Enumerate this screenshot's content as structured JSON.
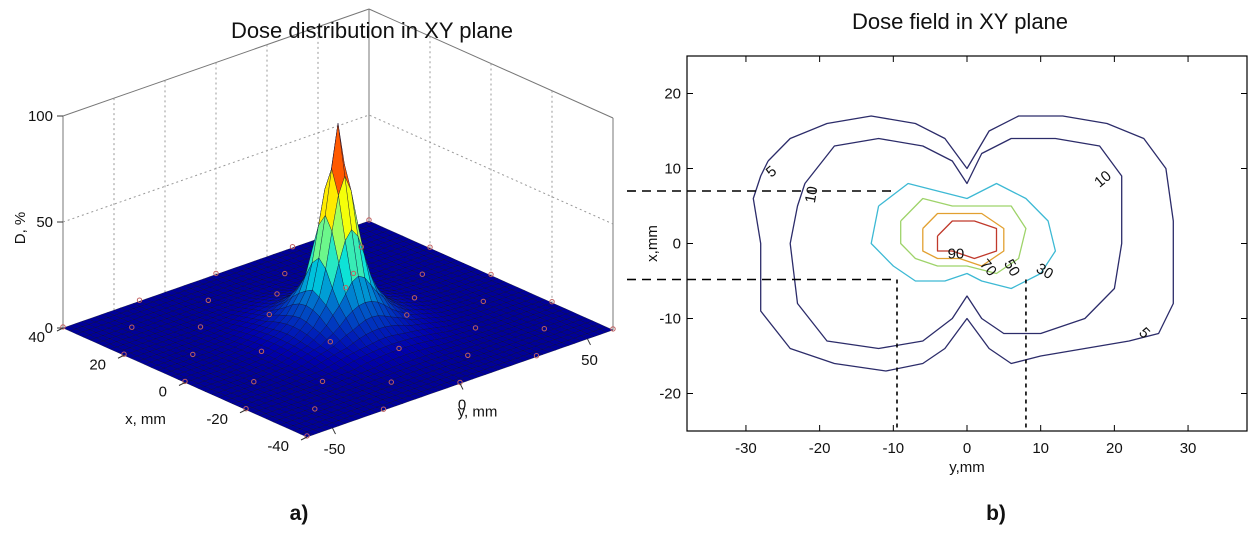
{
  "chart_data": [
    {
      "type": "surface",
      "panel_label": "a)",
      "title": "Dose distribution in XY plane",
      "xlabel": "x, mm",
      "ylabel": "y, mm",
      "zlabel": "D, %",
      "x_ticks": [
        "40",
        "20",
        "0",
        "-20",
        "-40"
      ],
      "y_ticks": [
        "-50",
        "0",
        "50"
      ],
      "z_ticks": [
        "0",
        "50",
        "100"
      ],
      "xlim": [
        -40,
        40
      ],
      "ylim": [
        -60,
        60
      ],
      "zlim": [
        0,
        100
      ],
      "colormap": "jet",
      "peak": {
        "x": 0,
        "y": 0,
        "D": 97
      },
      "profile_D_vs_r_mm": [
        [
          0,
          97
        ],
        [
          2,
          80
        ],
        [
          4,
          62
        ],
        [
          6,
          45
        ],
        [
          8,
          30
        ],
        [
          10,
          20
        ],
        [
          15,
          10
        ],
        [
          20,
          5
        ],
        [
          30,
          1
        ],
        [
          40,
          0
        ]
      ],
      "grid": true,
      "colors": {
        "surface_low": "#0a1f8f",
        "surface_high": "#a00000",
        "markers": "#c06060"
      }
    },
    {
      "type": "contour",
      "panel_label": "b)",
      "title": "Dose field in XY plane",
      "xlabel": "y,mm",
      "ylabel": "x,mm",
      "xlim": [
        -38,
        38
      ],
      "ylim": [
        -25,
        25
      ],
      "x_ticks": [
        "-30",
        "-20",
        "-10",
        "0",
        "10",
        "20",
        "30"
      ],
      "y_ticks": [
        "20",
        "10",
        "0",
        "-10",
        "-20"
      ],
      "levels": [
        {
          "label": "5",
          "color": "#2c2c6a",
          "points": [
            [
              -27,
              11
            ],
            [
              -24,
              14
            ],
            [
              -19,
              16
            ],
            [
              -13,
              17
            ],
            [
              -7,
              16
            ],
            [
              -3,
              14
            ],
            [
              0,
              10
            ],
            [
              3,
              15
            ],
            [
              7,
              17
            ],
            [
              13,
              17
            ],
            [
              19,
              16
            ],
            [
              24,
              14
            ],
            [
              27,
              10
            ],
            [
              28,
              3
            ],
            [
              28,
              -8
            ],
            [
              26,
              -12
            ],
            [
              22,
              -13
            ],
            [
              16,
              -14
            ],
            [
              10,
              -15
            ],
            [
              6,
              -16
            ],
            [
              3,
              -14
            ],
            [
              0,
              -10
            ],
            [
              -3,
              -14
            ],
            [
              -6,
              -16
            ],
            [
              -11,
              -17
            ],
            [
              -18,
              -16
            ],
            [
              -24,
              -14
            ],
            [
              -28,
              -9
            ],
            [
              -28,
              0
            ],
            [
              -29,
              6
            ],
            [
              -28,
              9
            ],
            [
              -27,
              11
            ]
          ]
        },
        {
          "label": "10",
          "color": "#2c2c6a",
          "points": [
            [
              -22,
              8
            ],
            [
              -18,
              13
            ],
            [
              -12,
              14
            ],
            [
              -6,
              13
            ],
            [
              -2,
              11
            ],
            [
              0,
              8
            ],
            [
              2,
              12
            ],
            [
              6,
              14
            ],
            [
              12,
              14
            ],
            [
              18,
              13
            ],
            [
              21,
              9
            ],
            [
              21,
              0
            ],
            [
              20,
              -6
            ],
            [
              16,
              -10
            ],
            [
              10,
              -12
            ],
            [
              5,
              -12
            ],
            [
              2,
              -10
            ],
            [
              0,
              -7
            ],
            [
              -2,
              -10
            ],
            [
              -6,
              -13
            ],
            [
              -12,
              -14
            ],
            [
              -19,
              -13
            ],
            [
              -23,
              -8
            ],
            [
              -24,
              0
            ],
            [
              -23,
              5
            ],
            [
              -22,
              8
            ]
          ]
        },
        {
          "label": "30",
          "color": "#3db9d4",
          "points": [
            [
              -12,
              5
            ],
            [
              -8,
              8
            ],
            [
              -4,
              7
            ],
            [
              0,
              6
            ],
            [
              4,
              8
            ],
            [
              8,
              6
            ],
            [
              11,
              3
            ],
            [
              12,
              -1
            ],
            [
              10,
              -4
            ],
            [
              6,
              -6
            ],
            [
              2,
              -5
            ],
            [
              0,
              -4
            ],
            [
              -3,
              -5
            ],
            [
              -7,
              -5
            ],
            [
              -10,
              -3
            ],
            [
              -13,
              0
            ],
            [
              -12,
              5
            ]
          ]
        },
        {
          "label": "50",
          "color": "#9ed36a",
          "points": [
            [
              -9,
              3
            ],
            [
              -6,
              6
            ],
            [
              -2,
              5
            ],
            [
              2,
              5
            ],
            [
              6,
              5
            ],
            [
              8,
              2
            ],
            [
              7,
              -2
            ],
            [
              4,
              -4
            ],
            [
              0,
              -3
            ],
            [
              -4,
              -3
            ],
            [
              -7,
              -2
            ],
            [
              -9,
              0
            ],
            [
              -9,
              3
            ]
          ]
        },
        {
          "label": "70",
          "color": "#e2a030",
          "points": [
            [
              -6,
              2
            ],
            [
              -4,
              4
            ],
            [
              -1,
              4
            ],
            [
              2,
              4
            ],
            [
              5,
              2
            ],
            [
              5,
              -1
            ],
            [
              2,
              -3
            ],
            [
              -1,
              -2
            ],
            [
              -4,
              -2
            ],
            [
              -6,
              -1
            ],
            [
              -6,
              2
            ]
          ]
        },
        {
          "label": "90",
          "color": "#c0392b",
          "points": [
            [
              -4,
              1
            ],
            [
              -2,
              3
            ],
            [
              1,
              3
            ],
            [
              4,
              2
            ],
            [
              4,
              -1
            ],
            [
              1,
              -2
            ],
            [
              -2,
              -1
            ],
            [
              -4,
              -1
            ],
            [
              -4,
              1
            ]
          ]
        }
      ],
      "contour_labels": [
        {
          "text": "5",
          "x": -26.5,
          "y": 9.5,
          "rotate": 40
        },
        {
          "text": "10",
          "x": -21,
          "y": 6.5,
          "rotate": 80
        },
        {
          "text": "10",
          "x": 18.5,
          "y": 8.5,
          "rotate": 40
        },
        {
          "text": "5",
          "x": 24,
          "y": -12,
          "rotate": -45
        },
        {
          "text": "90",
          "x": -1.5,
          "y": -1.5,
          "rotate": 0
        },
        {
          "text": "70",
          "x": 2.8,
          "y": -3.3,
          "rotate": -50
        },
        {
          "text": "50",
          "x": 6,
          "y": -3.3,
          "rotate": -60
        },
        {
          "text": "30",
          "x": 10.5,
          "y": -3.8,
          "rotate": -30
        }
      ],
      "reference_lines": {
        "x_const": [
          7,
          -4.8
        ],
        "y_const": [
          -9.5,
          8
        ]
      },
      "grid": false,
      "colors": {
        "axes": "#000000"
      }
    }
  ]
}
